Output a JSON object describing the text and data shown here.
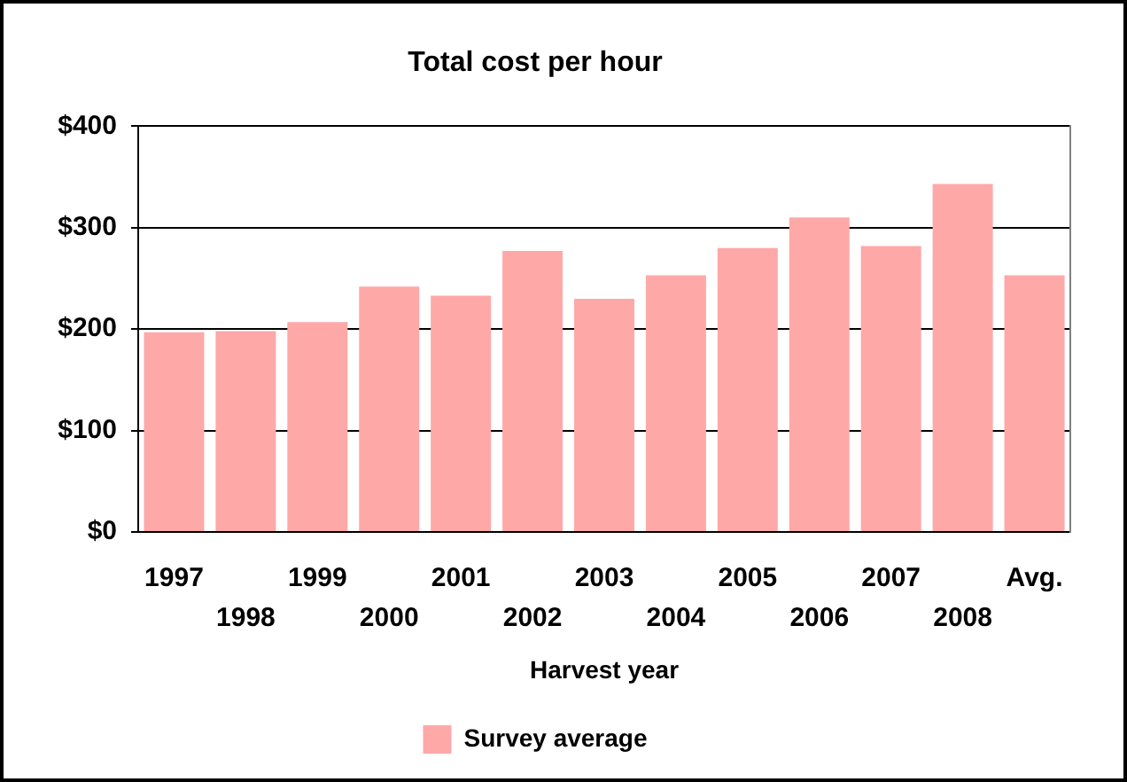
{
  "chart_data": {
    "type": "bar",
    "title": "Total cost per hour",
    "xlabel": "Harvest year",
    "categories": [
      "1997",
      "1998",
      "1999",
      "2000",
      "2001",
      "2002",
      "2003",
      "2004",
      "2005",
      "2006",
      "2007",
      "2008",
      "Avg."
    ],
    "series": [
      {
        "name": "Survey average",
        "color": "#ffa8a8",
        "values": [
          197,
          198,
          207,
          242,
          233,
          277,
          230,
          253,
          280,
          310,
          282,
          343,
          253
        ]
      }
    ],
    "ylim": [
      0,
      400
    ],
    "yticks": [
      {
        "value": 0,
        "label": "$0"
      },
      {
        "value": 100,
        "label": "$100"
      },
      {
        "value": 200,
        "label": "$200"
      },
      {
        "value": 300,
        "label": "$300"
      },
      {
        "value": 400,
        "label": "$400"
      }
    ],
    "grid": "y",
    "legend": "bottom"
  }
}
